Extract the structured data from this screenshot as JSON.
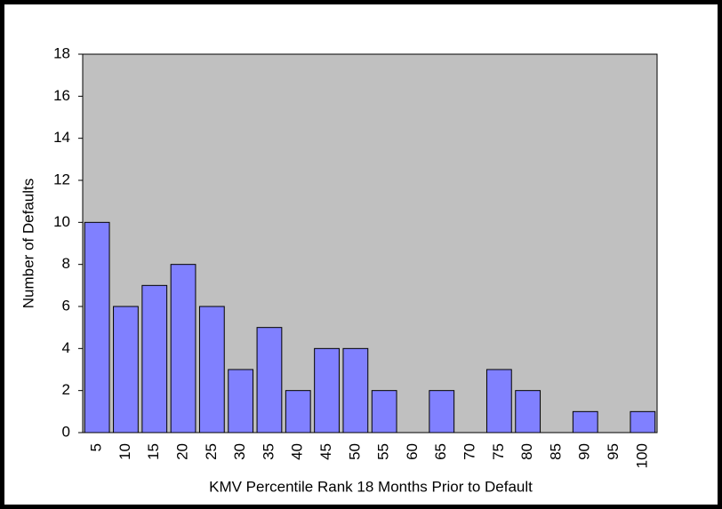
{
  "chart_data": {
    "type": "bar",
    "x_label": "KMV Percentile Rank 18 Months Prior to Default",
    "y_label": "Number of Defaults",
    "categories": [
      "5",
      "10",
      "15",
      "20",
      "25",
      "30",
      "35",
      "40",
      "45",
      "50",
      "55",
      "60",
      "65",
      "70",
      "75",
      "80",
      "85",
      "90",
      "95",
      "100"
    ],
    "values": [
      10,
      6,
      7,
      8,
      6,
      3,
      5,
      2,
      4,
      4,
      2,
      0,
      2,
      0,
      3,
      2,
      0,
      1,
      0,
      1
    ],
    "color": "#8080ff",
    "plot_background": "#c0c0c0",
    "ylim": [
      0,
      18
    ],
    "yticks": [
      0,
      2,
      4,
      6,
      8,
      10,
      12,
      14,
      16,
      18
    ],
    "grid": false
  }
}
